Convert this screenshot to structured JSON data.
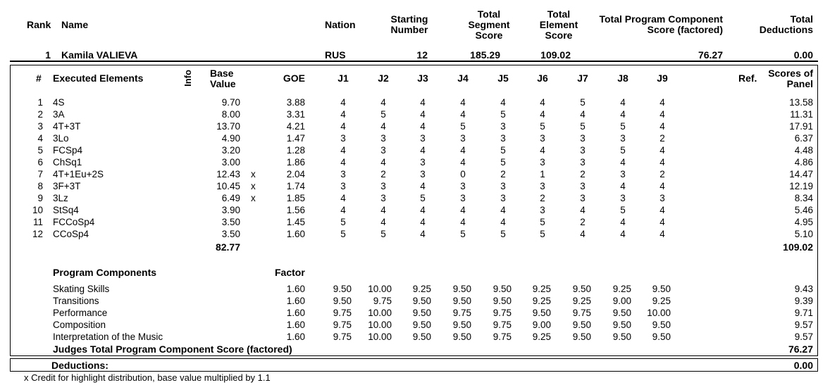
{
  "header": {
    "rank": "Rank",
    "name": "Name",
    "nation": "Nation",
    "starting_number": [
      "Starting",
      "Number"
    ],
    "tss": [
      "Total",
      "Segment",
      "Score"
    ],
    "tes": [
      "Total",
      "Element",
      "Score"
    ],
    "pcs": [
      "Total Program Component",
      "Score (factored)"
    ],
    "deductions": [
      "Total",
      "Deductions"
    ]
  },
  "skater": {
    "rank": "1",
    "name": "Kamila VALIEVA",
    "nation": "RUS",
    "starting_number": "12",
    "tss": "185.29",
    "tes": "109.02",
    "pcs": "76.27",
    "deductions": "0.00"
  },
  "elements_header": {
    "num": "#",
    "executed": "Executed Elements",
    "info": "Info",
    "base": [
      "Base",
      "Value"
    ],
    "goe": "GOE",
    "judges": [
      "J1",
      "J2",
      "J3",
      "J4",
      "J5",
      "J6",
      "J7",
      "J8",
      "J9"
    ],
    "ref": "Ref.",
    "panel": [
      "Scores of",
      "Panel"
    ]
  },
  "elements": [
    {
      "n": "1",
      "name": "4S",
      "info": "",
      "base": "9.70",
      "goe": "3.88",
      "j": [
        "4",
        "4",
        "4",
        "4",
        "4",
        "4",
        "5",
        "4",
        "4"
      ],
      "panel": "13.58"
    },
    {
      "n": "2",
      "name": "3A",
      "info": "",
      "base": "8.00",
      "goe": "3.31",
      "j": [
        "4",
        "5",
        "4",
        "4",
        "5",
        "4",
        "4",
        "4",
        "4"
      ],
      "panel": "11.31"
    },
    {
      "n": "3",
      "name": "4T+3T",
      "info": "",
      "base": "13.70",
      "goe": "4.21",
      "j": [
        "4",
        "4",
        "4",
        "5",
        "3",
        "5",
        "5",
        "5",
        "4"
      ],
      "panel": "17.91"
    },
    {
      "n": "4",
      "name": "3Lo",
      "info": "",
      "base": "4.90",
      "goe": "1.47",
      "j": [
        "3",
        "3",
        "3",
        "3",
        "3",
        "3",
        "3",
        "3",
        "2"
      ],
      "panel": "6.37"
    },
    {
      "n": "5",
      "name": "FCSp4",
      "info": "",
      "base": "3.20",
      "goe": "1.28",
      "j": [
        "4",
        "3",
        "4",
        "4",
        "5",
        "4",
        "3",
        "5",
        "4"
      ],
      "panel": "4.48"
    },
    {
      "n": "6",
      "name": "ChSq1",
      "info": "",
      "base": "3.00",
      "goe": "1.86",
      "j": [
        "4",
        "4",
        "3",
        "4",
        "5",
        "3",
        "3",
        "4",
        "4"
      ],
      "panel": "4.86"
    },
    {
      "n": "7",
      "name": "4T+1Eu+2S",
      "info": "x",
      "base": "12.43",
      "goe": "2.04",
      "j": [
        "3",
        "2",
        "3",
        "0",
        "2",
        "1",
        "2",
        "3",
        "2"
      ],
      "panel": "14.47"
    },
    {
      "n": "8",
      "name": "3F+3T",
      "info": "x",
      "base": "10.45",
      "goe": "1.74",
      "j": [
        "3",
        "3",
        "4",
        "3",
        "3",
        "3",
        "3",
        "4",
        "4"
      ],
      "panel": "12.19"
    },
    {
      "n": "9",
      "name": "3Lz",
      "info": "x",
      "base": "6.49",
      "goe": "1.85",
      "j": [
        "4",
        "3",
        "5",
        "3",
        "3",
        "2",
        "3",
        "3",
        "3"
      ],
      "panel": "8.34"
    },
    {
      "n": "10",
      "name": "StSq4",
      "info": "",
      "base": "3.90",
      "goe": "1.56",
      "j": [
        "4",
        "4",
        "4",
        "4",
        "4",
        "3",
        "4",
        "5",
        "4"
      ],
      "panel": "5.46"
    },
    {
      "n": "11",
      "name": "FCCoSp4",
      "info": "",
      "base": "3.50",
      "goe": "1.45",
      "j": [
        "5",
        "4",
        "4",
        "4",
        "4",
        "5",
        "2",
        "4",
        "4"
      ],
      "panel": "4.95"
    },
    {
      "n": "12",
      "name": "CCoSp4",
      "info": "",
      "base": "3.50",
      "goe": "1.60",
      "j": [
        "5",
        "5",
        "4",
        "5",
        "5",
        "5",
        "4",
        "4",
        "4"
      ],
      "panel": "5.10"
    }
  ],
  "elements_total": {
    "base": "82.77",
    "panel": "109.02"
  },
  "components_header": {
    "title": "Program Components",
    "factor": "Factor"
  },
  "components": [
    {
      "name": "Skating Skills",
      "factor": "1.60",
      "j": [
        "9.50",
        "10.00",
        "9.25",
        "9.50",
        "9.50",
        "9.25",
        "9.50",
        "9.25",
        "9.50"
      ],
      "panel": "9.43"
    },
    {
      "name": "Transitions",
      "factor": "1.60",
      "j": [
        "9.50",
        "9.75",
        "9.50",
        "9.50",
        "9.50",
        "9.25",
        "9.25",
        "9.00",
        "9.25"
      ],
      "panel": "9.39"
    },
    {
      "name": "Performance",
      "factor": "1.60",
      "j": [
        "9.75",
        "10.00",
        "9.50",
        "9.75",
        "9.75",
        "9.50",
        "9.75",
        "9.50",
        "10.00"
      ],
      "panel": "9.71"
    },
    {
      "name": "Composition",
      "factor": "1.60",
      "j": [
        "9.75",
        "10.00",
        "9.50",
        "9.50",
        "9.75",
        "9.00",
        "9.50",
        "9.50",
        "9.50"
      ],
      "panel": "9.57"
    },
    {
      "name": "Interpretation of the Music",
      "factor": "1.60",
      "j": [
        "9.75",
        "10.00",
        "9.50",
        "9.50",
        "9.75",
        "9.25",
        "9.50",
        "9.50",
        "9.50"
      ],
      "panel": "9.57"
    }
  ],
  "components_total": {
    "label": "Judges Total Program Component Score (factored)",
    "value": "76.27"
  },
  "deductions": {
    "label": "Deductions:",
    "value": "0.00"
  },
  "footnote": "x Credit for highlight distribution, base value multiplied by 1.1"
}
